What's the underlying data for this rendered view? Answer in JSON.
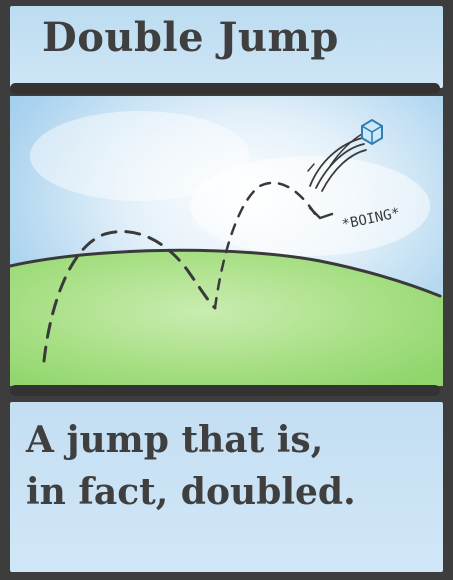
{
  "title": "Double Jump",
  "sound_effect": "*BOING*",
  "caption": {
    "line1": "A jump that is,",
    "line2": "in fact, doubled."
  },
  "colors": {
    "frame": "#3d3d3d",
    "sky": "#c6e1f3",
    "grass": "#9fdc7c",
    "ink": "#3f3f3f",
    "cube": "#5aa9d6"
  }
}
